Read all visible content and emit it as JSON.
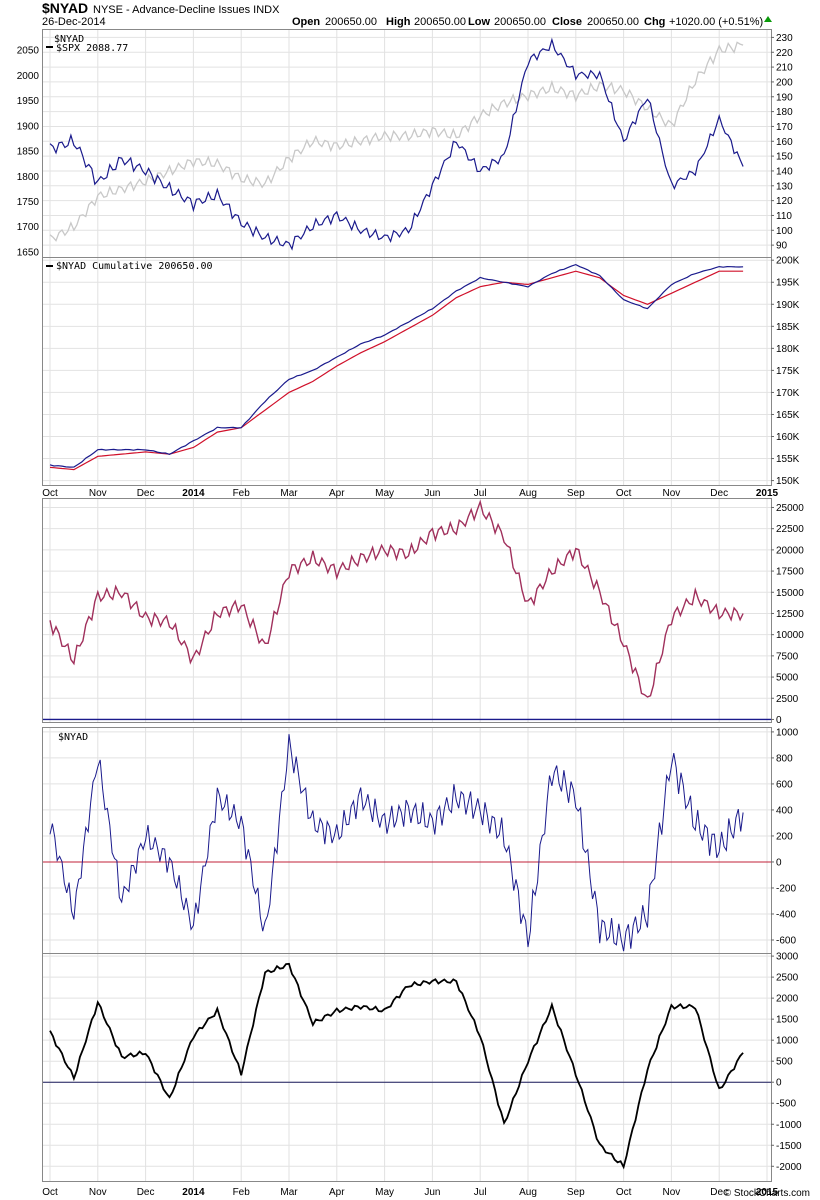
{
  "header": {
    "symbol": "$NYAD",
    "description": "NYSE - Advance-Decline Issues INDX",
    "date": "26-Dec-2014",
    "open_label": "Open",
    "open_value": "200650.00",
    "high_label": "High",
    "high_value": "200650.00",
    "low_label": "Low",
    "low_value": "200650.00",
    "close_label": "Close",
    "close_value": "200650.00",
    "chg_label": "Chg",
    "chg_value": "+1020.00 (+0.51%)",
    "watermark": "© StockCharts.com"
  },
  "colors": {
    "nyad": "#1a1a8c",
    "spx": "#c8c8c8",
    "ma": "#d0102a",
    "middle": "#a0305c",
    "zero_line": "#c0203a",
    "bottom": "#000000"
  },
  "x_axis": {
    "labels": [
      "Oct",
      "Nov",
      "Dec",
      "2014",
      "Feb",
      "Mar",
      "Apr",
      "May",
      "Jun",
      "Jul",
      "Aug",
      "Sep",
      "Oct",
      "Nov",
      "Dec",
      "2015"
    ],
    "bold": [
      "2014",
      "2015"
    ]
  },
  "panel1": {
    "legend_nyad": "$NYAD",
    "legend_spx": "$SPX 2088.77",
    "left_ticks": [
      "2050",
      "2000",
      "1950",
      "1900",
      "1850",
      "1800",
      "1750",
      "1700",
      "1650"
    ],
    "right_ticks": [
      "230",
      "220",
      "210",
      "200",
      "190",
      "180",
      "170",
      "160",
      "150",
      "140",
      "130",
      "120",
      "110",
      "100",
      "90"
    ]
  },
  "panel2": {
    "legend": "$NYAD Cumulative 200650.00",
    "right_ticks": [
      "200K",
      "195K",
      "190K",
      "185K",
      "180K",
      "175K",
      "170K",
      "165K",
      "160K",
      "155K",
      "150K"
    ]
  },
  "panel3": {
    "right_ticks": [
      "25000",
      "22500",
      "20000",
      "17500",
      "15000",
      "12500",
      "10000",
      "7500",
      "5000",
      "2500",
      "0"
    ]
  },
  "panel4": {
    "legend": "$NYAD",
    "right_ticks": [
      "1000",
      "800",
      "600",
      "400",
      "200",
      "0",
      "-200",
      "-400",
      "-600"
    ]
  },
  "panel5": {
    "right_ticks": [
      "3000",
      "2500",
      "2000",
      "1500",
      "1000",
      "500",
      "0",
      "-500",
      "-1000",
      "-1500",
      "-2000"
    ]
  },
  "chart_data": [
    {
      "type": "line",
      "series": [
        {
          "name": "$NYAD",
          "y_axis": "right",
          "x": [
            0.0,
            0.5,
            1.0,
            1.5,
            2.0,
            2.5,
            3.0,
            3.5,
            4.0,
            4.5,
            5.0,
            5.5,
            6.0,
            6.5,
            7.0,
            7.5,
            8.0,
            8.5,
            9.0,
            9.5,
            10.0,
            10.5,
            11.0,
            11.5,
            12.0,
            12.5,
            13.0,
            13.5,
            14.0,
            14.5
          ],
          "values": [
            155,
            160,
            132,
            148,
            140,
            128,
            118,
            124,
            105,
            95,
            90,
            103,
            110,
            100,
            95,
            100,
            130,
            160,
            140,
            150,
            214,
            225,
            205,
            205,
            160,
            190,
            130,
            140,
            175,
            143
          ]
        },
        {
          "name": "$SPX 2088.77",
          "y_axis": "left",
          "x": [
            0.0,
            0.5,
            1.0,
            1.5,
            2.0,
            2.5,
            3.0,
            3.5,
            4.0,
            4.5,
            5.0,
            5.5,
            6.0,
            6.5,
            7.0,
            7.5,
            8.0,
            8.5,
            9.0,
            9.5,
            10.0,
            10.5,
            11.0,
            11.5,
            12.0,
            12.5,
            13.0,
            13.5,
            14.0,
            14.5
          ],
          "values": [
            1675,
            1700,
            1760,
            1775,
            1790,
            1810,
            1830,
            1825,
            1795,
            1785,
            1835,
            1870,
            1860,
            1870,
            1880,
            1880,
            1890,
            1880,
            1920,
            1945,
            1960,
            1975,
            1960,
            1980,
            1970,
            1935,
            1900,
            1990,
            2050,
            2060
          ]
        }
      ],
      "left_ylim": [
        1640,
        2090
      ],
      "right_ylim": [
        82,
        235
      ]
    },
    {
      "type": "line",
      "title": "$NYAD Cumulative 200650.00",
      "series": [
        {
          "name": "$NYAD Cumulative 200650.00",
          "x": [
            0.0,
            0.5,
            1.0,
            1.5,
            2.0,
            2.5,
            3.0,
            3.5,
            4.0,
            4.5,
            5.0,
            5.5,
            6.0,
            6.5,
            7.0,
            7.5,
            8.0,
            8.5,
            9.0,
            9.5,
            10.0,
            10.5,
            11.0,
            11.5,
            12.0,
            12.5,
            13.0,
            13.5,
            14.0,
            14.5
          ],
          "values": [
            153.5,
            153.0,
            157.0,
            157.0,
            157.0,
            156.0,
            159.0,
            162.0,
            162.0,
            168.0,
            173.0,
            175.0,
            178.0,
            181.0,
            183.0,
            186.0,
            189.0,
            193.0,
            196.0,
            195.0,
            194.0,
            197.0,
            199.0,
            196.5,
            191.0,
            189.0,
            194.5,
            197.0,
            198.5,
            198.5
          ]
        },
        {
          "x": [
            0.0,
            0.5,
            1.0,
            1.5,
            2.0,
            2.5,
            3.0,
            3.5,
            4.0,
            4.5,
            5.0,
            5.5,
            6.0,
            6.5,
            7.0,
            7.5,
            8.0,
            8.5,
            9.0,
            9.5,
            10.0,
            10.5,
            11.0,
            11.5,
            12.0,
            12.5,
            13.0,
            13.5,
            14.0,
            14.5
          ],
          "values": [
            153.0,
            152.5,
            155.5,
            156.0,
            156.5,
            156.0,
            157.5,
            161.0,
            162.0,
            166.0,
            170.0,
            172.5,
            176.0,
            179.0,
            181.5,
            184.5,
            187.5,
            191.5,
            194.0,
            195.0,
            194.5,
            196.0,
            197.5,
            196.0,
            192.0,
            190.0,
            192.5,
            195.0,
            197.5,
            197.5
          ]
        }
      ],
      "ylim": [
        149,
        200.5
      ]
    },
    {
      "type": "line",
      "series": [
        {
          "x": [
            0.0,
            0.5,
            1.0,
            1.5,
            2.0,
            2.5,
            3.0,
            3.5,
            4.0,
            4.5,
            5.0,
            5.5,
            6.0,
            6.5,
            7.0,
            7.5,
            8.0,
            8.5,
            9.0,
            9.5,
            10.0,
            10.5,
            11.0,
            11.5,
            12.0,
            12.5,
            13.0,
            13.5,
            14.0,
            14.5
          ],
          "values": [
            11500,
            7000,
            14500,
            15000,
            12000,
            11500,
            7000,
            12500,
            13500,
            8500,
            17500,
            19000,
            17500,
            19000,
            20000,
            19500,
            22000,
            22500,
            25000,
            21500,
            13500,
            17500,
            20000,
            15000,
            9000,
            2000,
            12000,
            14500,
            12500,
            12500
          ]
        }
      ],
      "ylim": [
        -300,
        26000
      ]
    },
    {
      "type": "line",
      "title": "$NYAD",
      "series": [
        {
          "name": "$NYAD",
          "x": [
            0.0,
            0.5,
            1.0,
            1.5,
            2.0,
            2.5,
            3.0,
            3.5,
            4.0,
            4.5,
            5.0,
            5.5,
            6.0,
            6.5,
            7.0,
            7.5,
            8.0,
            8.5,
            9.0,
            9.5,
            10.0,
            10.5,
            11.0,
            11.5,
            12.0,
            12.5,
            13.0,
            13.5,
            14.0,
            14.5
          ],
          "values": [
            300,
            -400,
            800,
            -300,
            200,
            0,
            -500,
            500,
            300,
            -550,
            900,
            300,
            200,
            500,
            300,
            400,
            300,
            500,
            400,
            200,
            -600,
            700,
            500,
            -500,
            -600,
            -400,
            800,
            300,
            100,
            380
          ]
        }
      ],
      "ylim": [
        -700,
        1030
      ]
    },
    {
      "type": "line",
      "series": [
        {
          "x": [
            0.0,
            0.5,
            1.0,
            1.5,
            2.0,
            2.5,
            3.0,
            3.5,
            4.0,
            4.5,
            5.0,
            5.5,
            6.0,
            6.5,
            7.0,
            7.5,
            8.0,
            8.5,
            9.0,
            9.5,
            10.0,
            10.5,
            11.0,
            11.5,
            12.0,
            12.5,
            13.0,
            13.5,
            14.0,
            14.5
          ],
          "values": [
            1200,
            100,
            1900,
            600,
            700,
            -400,
            1100,
            1700,
            200,
            2600,
            2800,
            1400,
            1700,
            1800,
            1700,
            2300,
            2400,
            2400,
            1100,
            -1000,
            500,
            1800,
            200,
            -1500,
            -2000,
            300,
            1800,
            1800,
            -200,
            700
          ]
        }
      ],
      "ylim": [
        -2350,
        3050
      ]
    }
  ]
}
